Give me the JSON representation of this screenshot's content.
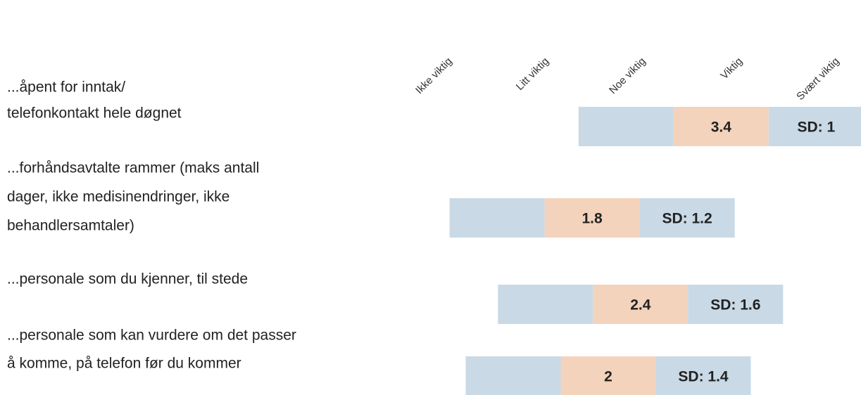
{
  "chart_data": {
    "type": "mean-sd",
    "scale_labels": [
      "Ikke viktig",
      "Litt viktig",
      "Noe viktig",
      "Viktig",
      "Svært viktig"
    ],
    "categories": [
      [
        "...åpent for inntak/",
        "telefonkontakt hele døgnet"
      ],
      [
        "...forhåndsavtalte rammer (maks antall",
        "dager, ikke medisinendringer, ikke",
        "behandlersamtaler)"
      ],
      [
        "...personale som du kjenner, til stede"
      ],
      [
        "...personale som kan vurdere om det passer",
        "å komme, på telefon før du kommer"
      ]
    ],
    "values": [
      3.4,
      1.8,
      2.4,
      2
    ],
    "sd": [
      1,
      1.2,
      1.6,
      1.4
    ],
    "sd_labels": [
      "SD: 1",
      "SD: 1.2",
      "SD: 1.6",
      "SD: 1.4"
    ],
    "xlim": [
      0,
      4
    ],
    "colors": {
      "mean": "#f4d3bc",
      "sd": "#c9d9e6"
    }
  }
}
